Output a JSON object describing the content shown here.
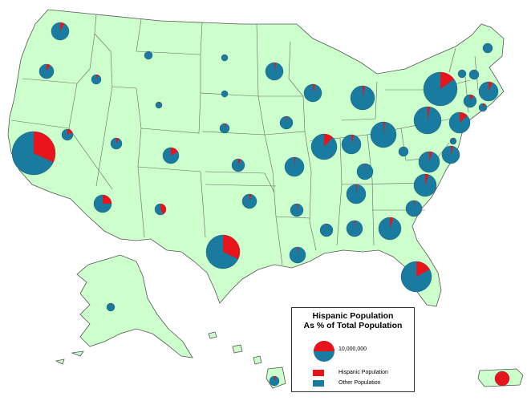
{
  "colors": {
    "land": "#ccffcc",
    "hispanic": "#e8141c",
    "other": "#1a7ba0",
    "border": "#555555"
  },
  "legend": {
    "title_line1": "Hispanic Population",
    "title_line2": "As % of Total Population",
    "scale_label": "10,000,000",
    "hispanic_label": "Hispanic Population",
    "other_label": "Other Population"
  },
  "chart_data": {
    "type": "pie",
    "unit": "share of population that is Hispanic",
    "states": [
      {
        "state": "Washington",
        "hispanic_share": 0.08
      },
      {
        "state": "Oregon",
        "hispanic_share": 0.08
      },
      {
        "state": "California",
        "hispanic_share": 0.32
      },
      {
        "state": "Nevada",
        "hispanic_share": 0.19
      },
      {
        "state": "Idaho",
        "hispanic_share": 0.08
      },
      {
        "state": "Montana",
        "hispanic_share": 0.02
      },
      {
        "state": "Wyoming",
        "hispanic_share": 0.06
      },
      {
        "state": "Utah",
        "hispanic_share": 0.09
      },
      {
        "state": "Colorado",
        "hispanic_share": 0.17
      },
      {
        "state": "Arizona",
        "hispanic_share": 0.25
      },
      {
        "state": "New Mexico",
        "hispanic_share": 0.42
      },
      {
        "state": "Texas",
        "hispanic_share": 0.32
      },
      {
        "state": "North Dakota",
        "hispanic_share": 0.01
      },
      {
        "state": "South Dakota",
        "hispanic_share": 0.01
      },
      {
        "state": "Nebraska",
        "hispanic_share": 0.05
      },
      {
        "state": "Kansas",
        "hispanic_share": 0.07
      },
      {
        "state": "Oklahoma",
        "hispanic_share": 0.05
      },
      {
        "state": "Minnesota",
        "hispanic_share": 0.03
      },
      {
        "state": "Iowa",
        "hispanic_share": 0.03
      },
      {
        "state": "Missouri",
        "hispanic_share": 0.02
      },
      {
        "state": "Arkansas",
        "hispanic_share": 0.03
      },
      {
        "state": "Louisiana",
        "hispanic_share": 0.02
      },
      {
        "state": "Wisconsin",
        "hispanic_share": 0.04
      },
      {
        "state": "Illinois",
        "hispanic_share": 0.12
      },
      {
        "state": "Michigan",
        "hispanic_share": 0.03
      },
      {
        "state": "Indiana",
        "hispanic_share": 0.04
      },
      {
        "state": "Ohio",
        "hispanic_share": 0.02
      },
      {
        "state": "Kentucky",
        "hispanic_share": 0.01
      },
      {
        "state": "Tennessee",
        "hispanic_share": 0.02
      },
      {
        "state": "Mississippi",
        "hispanic_share": 0.01
      },
      {
        "state": "Alabama",
        "hispanic_share": 0.02
      },
      {
        "state": "Georgia",
        "hispanic_share": 0.05
      },
      {
        "state": "Florida",
        "hispanic_share": 0.17
      },
      {
        "state": "South Carolina",
        "hispanic_share": 0.02
      },
      {
        "state": "North Carolina",
        "hispanic_share": 0.05
      },
      {
        "state": "Virginia",
        "hispanic_share": 0.05
      },
      {
        "state": "West Virginia",
        "hispanic_share": 0.01
      },
      {
        "state": "Pennsylvania",
        "hispanic_share": 0.03
      },
      {
        "state": "Maryland",
        "hispanic_share": 0.04
      },
      {
        "state": "Delaware",
        "hispanic_share": 0.05
      },
      {
        "state": "New Jersey",
        "hispanic_share": 0.13
      },
      {
        "state": "New York",
        "hispanic_share": 0.15
      },
      {
        "state": "Connecticut",
        "hispanic_share": 0.09
      },
      {
        "state": "Rhode Island",
        "hispanic_share": 0.09
      },
      {
        "state": "Massachusetts",
        "hispanic_share": 0.07
      },
      {
        "state": "Vermont",
        "hispanic_share": 0.01
      },
      {
        "state": "New Hampshire",
        "hispanic_share": 0.02
      },
      {
        "state": "Maine",
        "hispanic_share": 0.01
      },
      {
        "state": "Alaska",
        "hispanic_share": 0.04
      },
      {
        "state": "Hawaii",
        "hispanic_share": 0.07
      },
      {
        "state": "Puerto Rico",
        "hispanic_share": 0.99
      }
    ]
  }
}
